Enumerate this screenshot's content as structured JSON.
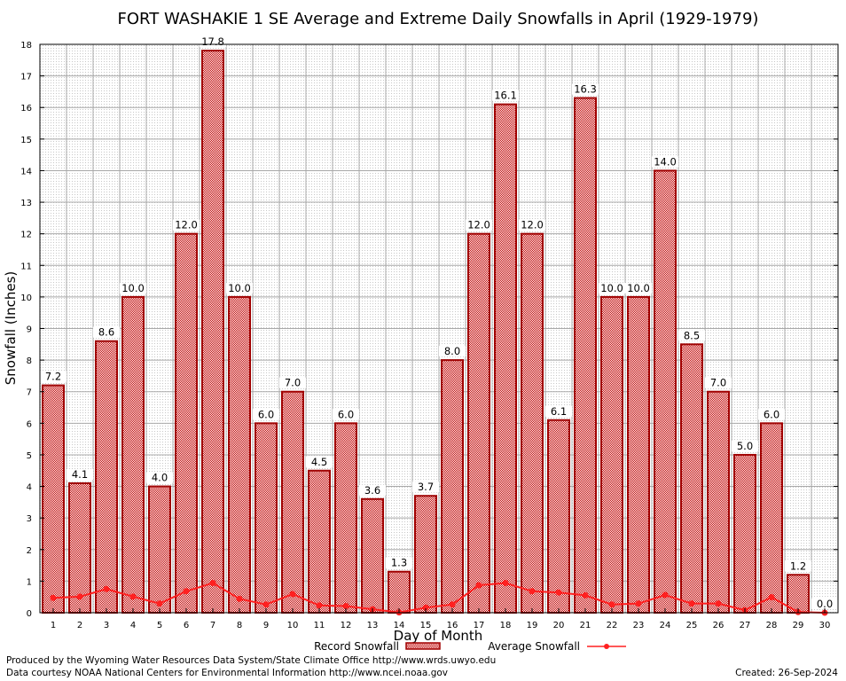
{
  "chart_data": {
    "type": "bar",
    "title": "FORT WASHAKIE 1 SE Average and Extreme Daily Snowfalls in April (1929-1979)",
    "xlabel": "Day of Month",
    "ylabel": "Snowfall (Inches)",
    "ylim": [
      0,
      18
    ],
    "yticks": [
      0,
      1,
      2,
      3,
      4,
      5,
      6,
      7,
      8,
      9,
      10,
      11,
      12,
      13,
      14,
      15,
      16,
      17,
      18
    ],
    "grid": true,
    "legend_placement": "bottom",
    "categories": [
      "1",
      "2",
      "3",
      "4",
      "5",
      "6",
      "7",
      "8",
      "9",
      "10",
      "11",
      "12",
      "13",
      "14",
      "15",
      "16",
      "17",
      "18",
      "19",
      "20",
      "21",
      "22",
      "23",
      "24",
      "25",
      "26",
      "27",
      "28",
      "29",
      "30"
    ],
    "series": [
      {
        "name": "Record Snowfall",
        "type": "bar",
        "color": "#b00000",
        "values": [
          7.2,
          4.1,
          8.6,
          10.0,
          4.0,
          12.0,
          17.8,
          10.0,
          6.0,
          7.0,
          4.5,
          6.0,
          3.6,
          1.3,
          3.7,
          8.0,
          12.0,
          16.1,
          12.0,
          6.1,
          16.3,
          10.0,
          10.0,
          14.0,
          8.5,
          7.0,
          5.0,
          6.0,
          1.2,
          0.0
        ],
        "labels": [
          "7.2",
          "4.1",
          "8.6",
          "10.0",
          "4.0",
          "12.0",
          "17.8",
          "10.0",
          "6.0",
          "7.0",
          "4.5",
          "6.0",
          "3.6",
          "1.3",
          "3.7",
          "8.0",
          "12.0",
          "16.1",
          "12.0",
          "6.1",
          "16.3",
          "10.0",
          "10.0",
          "14.0",
          "8.5",
          "7.0",
          "5.0",
          "6.0",
          "1.2",
          "0.0"
        ]
      },
      {
        "name": "Average Snowfall",
        "type": "line",
        "color": "#ff2020",
        "values": [
          0.47,
          0.51,
          0.75,
          0.51,
          0.29,
          0.68,
          0.94,
          0.44,
          0.26,
          0.59,
          0.23,
          0.21,
          0.11,
          0.01,
          0.16,
          0.26,
          0.87,
          0.94,
          0.68,
          0.64,
          0.55,
          0.26,
          0.29,
          0.56,
          0.29,
          0.29,
          0.08,
          0.49,
          0.02,
          0.0
        ]
      }
    ]
  },
  "footer": {
    "line1": "Produced by the Wyoming Water Resources Data System/State Climate Office http://www.wrds.uwyo.edu",
    "line2": "Data courtesy NOAA National Centers for Environmental Information http://www.ncei.noaa.gov",
    "created": "Created:  26-Sep-2024"
  }
}
